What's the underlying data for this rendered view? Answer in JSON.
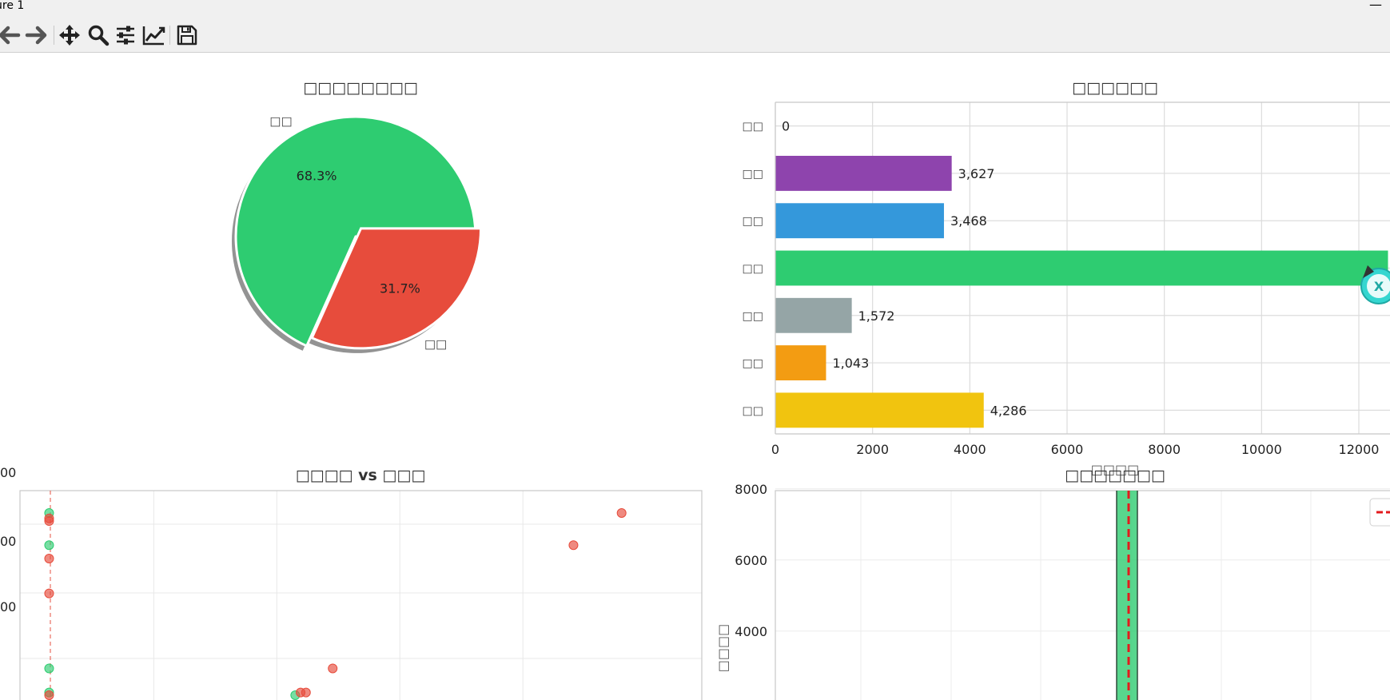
{
  "window": {
    "title": "ure 1",
    "minimize_glyph": "—"
  },
  "toolbar": {
    "buttons": [
      {
        "name": "back",
        "icon": "arrow-left-icon"
      },
      {
        "name": "forward",
        "icon": "arrow-right-icon"
      },
      {
        "name": "pan",
        "icon": "move-icon"
      },
      {
        "name": "zoom",
        "icon": "magnifier-icon"
      },
      {
        "name": "configure-subplots",
        "icon": "sliders-icon"
      },
      {
        "name": "edit-axis",
        "icon": "line-chart-icon"
      },
      {
        "name": "save",
        "icon": "floppy-disk-icon"
      }
    ]
  },
  "chart_data": [
    {
      "type": "pie",
      "title": "□□□□□□□□",
      "slices": [
        {
          "label": "□□",
          "value": 68.3,
          "pct_label": "68.3%",
          "color": "#2ecc71"
        },
        {
          "label": "□□",
          "value": 31.7,
          "pct_label": "31.7%",
          "color": "#e74c3c"
        }
      ],
      "shadow": true,
      "explode_second": true
    },
    {
      "type": "bar",
      "orientation": "horizontal",
      "title": "□□□□□□",
      "categories": [
        "□□",
        "□□",
        "□□",
        "□□",
        "□□",
        "□□",
        "□□"
      ],
      "values": [
        0,
        3627,
        3468,
        12600,
        1572,
        1043,
        4286
      ],
      "value_labels": [
        "0",
        "3,627",
        "3,468",
        "",
        "1,572",
        "1,043",
        "4,286"
      ],
      "colors": [
        "#2ecc71",
        "#8e44ad",
        "#3498db",
        "#2ecc71",
        "#95a5a6",
        "#f39c12",
        "#f1c40f"
      ],
      "xlabel": "□□□□",
      "xticks": [
        0,
        2000,
        4000,
        6000,
        8000,
        10000,
        12000
      ],
      "xtick_labels": [
        "0",
        "2000",
        "4000",
        "6000",
        "8000",
        "10000",
        "12000"
      ],
      "xlim": [
        0,
        12400
      ],
      "grid": true
    },
    {
      "type": "scatter",
      "title": "□□□□ vs □□□",
      "ytick_labels": [
        "00",
        "00",
        "00"
      ],
      "grid": true,
      "vline_label": "",
      "series": [
        {
          "color": "#2ecc71",
          "points": [
            [
              0.5,
              8.6
            ],
            [
              0.5,
              7.4
            ],
            [
              0.5,
              2.8
            ],
            [
              0.5,
              1.9
            ],
            [
              5.1,
              1.8
            ]
          ]
        },
        {
          "color": "#e74c3c",
          "points": [
            [
              0.5,
              8.4
            ],
            [
              0.5,
              8.3
            ],
            [
              0.5,
              6.9
            ],
            [
              0.5,
              5.6
            ],
            [
              0.5,
              1.8
            ],
            [
              5.2,
              1.9
            ],
            [
              5.3,
              1.9
            ],
            [
              5.8,
              2.8
            ],
            [
              11.2,
              8.6
            ],
            [
              10.3,
              7.4
            ]
          ]
        }
      ]
    },
    {
      "type": "bar",
      "title": "□□□□□□□",
      "ylabel": "□□□□",
      "yticks": [
        4000,
        6000,
        8000
      ],
      "ytick_labels": [
        "4000",
        "6000",
        "8000"
      ],
      "bars": [
        {
          "x": 0.495,
          "value": 8850,
          "color": "#2ecc71"
        }
      ],
      "vline": {
        "x": 0.5,
        "color": "#e31a1c",
        "style": "dashed"
      },
      "legend": {
        "location": "top-right",
        "entries": [
          {
            "color": "#e31a1c",
            "style": "dashed",
            "label": ""
          }
        ]
      },
      "grid": true
    }
  ],
  "overlay": {
    "icon": "mascot-icon"
  }
}
